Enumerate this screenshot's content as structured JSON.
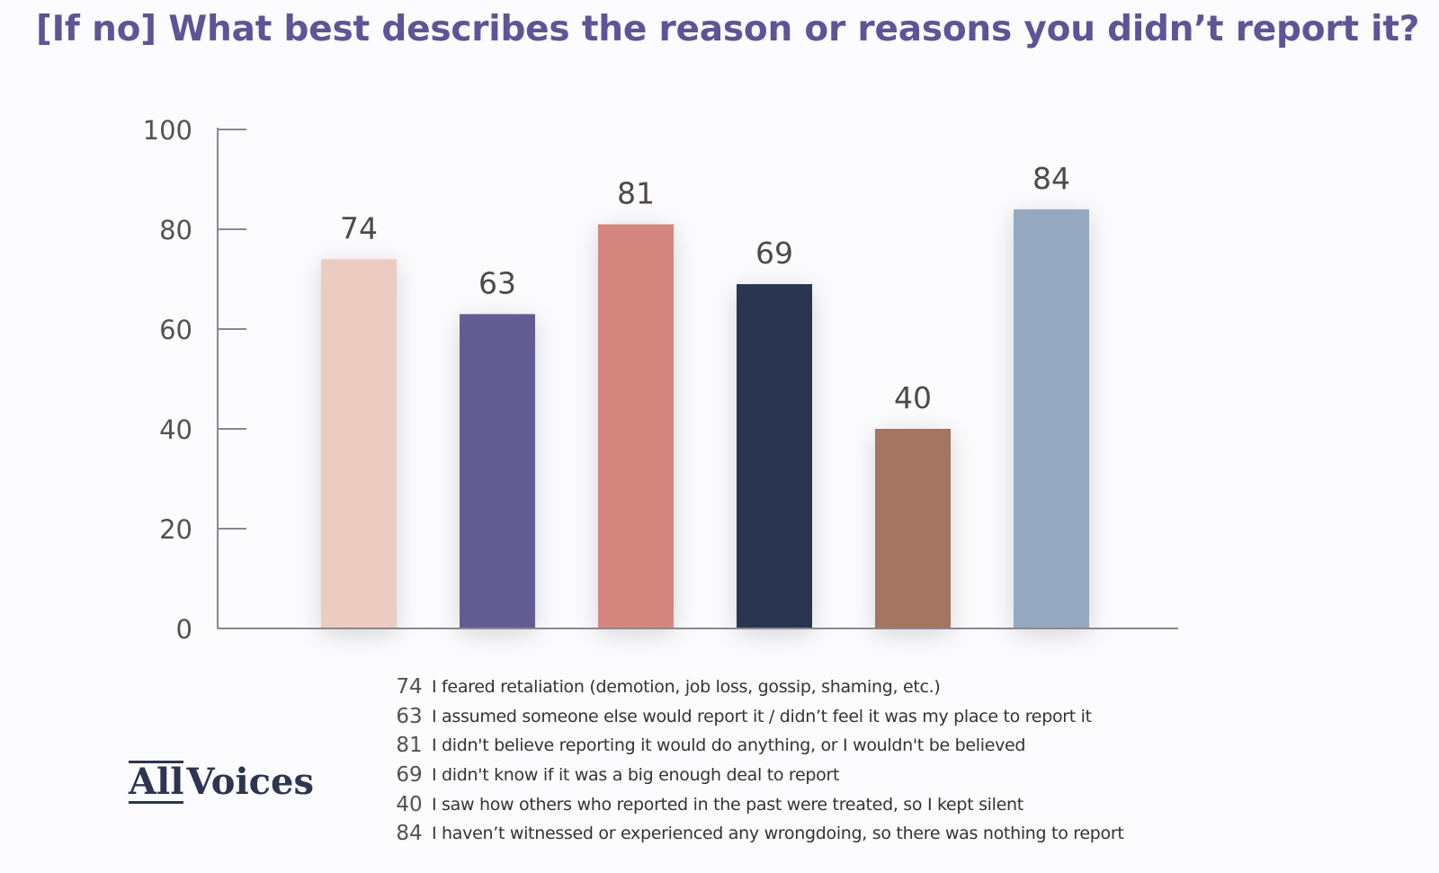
{
  "title": "[If no] What best describes the reason or reasons you didn’t report it?",
  "logo": {
    "part1": "All",
    "part2": "Voices"
  },
  "colors": {
    "axis": "#8a8790",
    "tick_text": "#55514f",
    "label_text": "#4f4a48"
  },
  "chart_data": {
    "type": "bar",
    "title": "[If no] What best describes the reason or reasons you didn’t report it?",
    "xlabel": "",
    "ylabel": "",
    "ylim": [
      0,
      100
    ],
    "yticks": [
      0,
      20,
      40,
      60,
      80,
      100
    ],
    "grid": false,
    "legend_position": "bottom",
    "categories": [
      "I feared retaliation (demotion, job loss, gossip, shaming, etc.)",
      "I assumed someone else would report it / didn’t feel it was my place to report it",
      "I didn't believe reporting it would do anything, or I wouldn't be believed",
      "I didn't know if it was a big enough deal to report",
      "I saw how others who reported in the past were treated, so I kept silent",
      "I haven’t witnessed or experienced any wrongdoing, so there was nothing to report"
    ],
    "values": [
      74,
      63,
      81,
      69,
      40,
      84
    ],
    "value_labels": [
      "74",
      "63",
      "81",
      "69",
      "40",
      "84"
    ],
    "bar_colors": [
      "#ecccc0",
      "#625c93",
      "#d4867f",
      "#2c354f",
      "#a47560",
      "#94a9bf"
    ]
  }
}
